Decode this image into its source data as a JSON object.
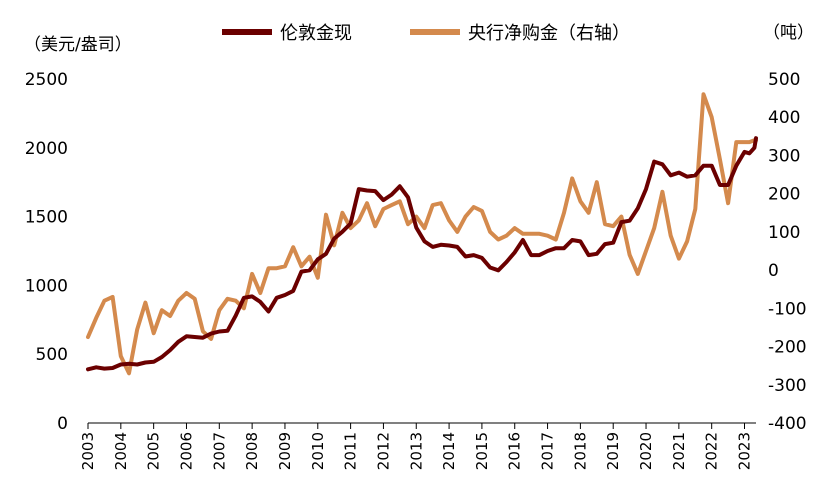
{
  "chart_data": {
    "type": "line",
    "left_axis_unit": "（美元/盎司）",
    "right_axis_unit": "（吨）",
    "left_ticks": [
      "0",
      "500",
      "1000",
      "1500",
      "2000",
      "2500"
    ],
    "right_ticks": [
      "-400",
      "-300",
      "-200",
      "-100",
      "0",
      "100",
      "200",
      "300",
      "400",
      "500"
    ],
    "x_ticks": [
      "2003",
      "2004",
      "2005",
      "2006",
      "2007",
      "2008",
      "2009",
      "2010",
      "2011",
      "2012",
      "2013",
      "2014",
      "2015",
      "2016",
      "2017",
      "2018",
      "2019",
      "2020",
      "2021",
      "2022",
      "2023"
    ],
    "ylim_left": [
      0,
      2500
    ],
    "ylim_right": [
      -400,
      500
    ],
    "xlim": [
      2003,
      2023.35
    ],
    "legend_position": "top",
    "series": [
      {
        "name": "伦敦金现",
        "axis": "left",
        "color": "#6b0000",
        "points": [
          [
            2003.0,
            390
          ],
          [
            2003.25,
            405
          ],
          [
            2003.5,
            395
          ],
          [
            2003.75,
            400
          ],
          [
            2004.0,
            425
          ],
          [
            2004.25,
            430
          ],
          [
            2004.5,
            425
          ],
          [
            2004.75,
            440
          ],
          [
            2005.0,
            445
          ],
          [
            2005.25,
            480
          ],
          [
            2005.5,
            530
          ],
          [
            2005.75,
            590
          ],
          [
            2006.0,
            630
          ],
          [
            2006.25,
            625
          ],
          [
            2006.5,
            620
          ],
          [
            2006.75,
            650
          ],
          [
            2007.0,
            665
          ],
          [
            2007.25,
            670
          ],
          [
            2007.5,
            780
          ],
          [
            2007.75,
            910
          ],
          [
            2008.0,
            920
          ],
          [
            2008.25,
            880
          ],
          [
            2008.5,
            810
          ],
          [
            2008.75,
            910
          ],
          [
            2009.0,
            930
          ],
          [
            2009.25,
            960
          ],
          [
            2009.5,
            1100
          ],
          [
            2009.75,
            1110
          ],
          [
            2010.0,
            1190
          ],
          [
            2010.25,
            1230
          ],
          [
            2010.5,
            1340
          ],
          [
            2010.75,
            1390
          ],
          [
            2011.0,
            1450
          ],
          [
            2011.25,
            1700
          ],
          [
            2011.5,
            1690
          ],
          [
            2011.75,
            1685
          ],
          [
            2012.0,
            1620
          ],
          [
            2012.25,
            1660
          ],
          [
            2012.5,
            1720
          ],
          [
            2012.75,
            1640
          ],
          [
            2013.0,
            1420
          ],
          [
            2013.25,
            1320
          ],
          [
            2013.5,
            1280
          ],
          [
            2013.75,
            1295
          ],
          [
            2014.0,
            1290
          ],
          [
            2014.25,
            1280
          ],
          [
            2014.5,
            1210
          ],
          [
            2014.75,
            1220
          ],
          [
            2015.0,
            1200
          ],
          [
            2015.25,
            1130
          ],
          [
            2015.5,
            1110
          ],
          [
            2015.75,
            1170
          ],
          [
            2016.0,
            1240
          ],
          [
            2016.25,
            1330
          ],
          [
            2016.5,
            1220
          ],
          [
            2016.75,
            1220
          ],
          [
            2017.0,
            1250
          ],
          [
            2017.25,
            1270
          ],
          [
            2017.5,
            1270
          ],
          [
            2017.75,
            1330
          ],
          [
            2018.0,
            1320
          ],
          [
            2018.25,
            1220
          ],
          [
            2018.5,
            1230
          ],
          [
            2018.75,
            1300
          ],
          [
            2019.0,
            1310
          ],
          [
            2019.25,
            1460
          ],
          [
            2019.5,
            1470
          ],
          [
            2019.75,
            1560
          ],
          [
            2020.0,
            1700
          ],
          [
            2020.25,
            1900
          ],
          [
            2020.5,
            1880
          ],
          [
            2020.75,
            1800
          ],
          [
            2021.0,
            1820
          ],
          [
            2021.25,
            1790
          ],
          [
            2021.5,
            1800
          ],
          [
            2021.75,
            1870
          ],
          [
            2022.0,
            1870
          ],
          [
            2022.25,
            1730
          ],
          [
            2022.5,
            1730
          ],
          [
            2022.75,
            1870
          ],
          [
            2023.0,
            1970
          ],
          [
            2023.15,
            1960
          ],
          [
            2023.3,
            2000
          ],
          [
            2023.35,
            2070
          ]
        ]
      },
      {
        "name": "央行净购金（右轴）",
        "axis": "right",
        "color": "#d48a4d",
        "points": [
          [
            2003.0,
            -175
          ],
          [
            2003.25,
            -125
          ],
          [
            2003.5,
            -80
          ],
          [
            2003.75,
            -70
          ],
          [
            2004.0,
            -225
          ],
          [
            2004.25,
            -270
          ],
          [
            2004.5,
            -155
          ],
          [
            2004.75,
            -85
          ],
          [
            2005.0,
            -165
          ],
          [
            2005.25,
            -105
          ],
          [
            2005.5,
            -120
          ],
          [
            2005.75,
            -80
          ],
          [
            2006.0,
            -60
          ],
          [
            2006.25,
            -75
          ],
          [
            2006.5,
            -160
          ],
          [
            2006.75,
            -180
          ],
          [
            2007.0,
            -105
          ],
          [
            2007.25,
            -75
          ],
          [
            2007.5,
            -80
          ],
          [
            2007.75,
            -100
          ],
          [
            2008.0,
            -10
          ],
          [
            2008.25,
            -60
          ],
          [
            2008.5,
            5
          ],
          [
            2008.75,
            5
          ],
          [
            2009.0,
            10
          ],
          [
            2009.25,
            60
          ],
          [
            2009.5,
            10
          ],
          [
            2009.75,
            35
          ],
          [
            2010.0,
            -20
          ],
          [
            2010.25,
            145
          ],
          [
            2010.5,
            65
          ],
          [
            2010.75,
            150
          ],
          [
            2011.0,
            110
          ],
          [
            2011.25,
            130
          ],
          [
            2011.5,
            175
          ],
          [
            2011.75,
            115
          ],
          [
            2012.0,
            160
          ],
          [
            2012.25,
            170
          ],
          [
            2012.5,
            180
          ],
          [
            2012.75,
            120
          ],
          [
            2013.0,
            140
          ],
          [
            2013.25,
            110
          ],
          [
            2013.5,
            170
          ],
          [
            2013.75,
            175
          ],
          [
            2014.0,
            130
          ],
          [
            2014.25,
            100
          ],
          [
            2014.5,
            140
          ],
          [
            2014.75,
            165
          ],
          [
            2015.0,
            155
          ],
          [
            2015.25,
            100
          ],
          [
            2015.5,
            80
          ],
          [
            2015.75,
            90
          ],
          [
            2016.0,
            110
          ],
          [
            2016.25,
            95
          ],
          [
            2016.5,
            95
          ],
          [
            2016.75,
            95
          ],
          [
            2017.0,
            90
          ],
          [
            2017.25,
            80
          ],
          [
            2017.5,
            150
          ],
          [
            2017.75,
            240
          ],
          [
            2018.0,
            180
          ],
          [
            2018.25,
            150
          ],
          [
            2018.5,
            230
          ],
          [
            2018.75,
            120
          ],
          [
            2019.0,
            115
          ],
          [
            2019.25,
            140
          ],
          [
            2019.5,
            40
          ],
          [
            2019.75,
            -10
          ],
          [
            2020.0,
            50
          ],
          [
            2020.25,
            110
          ],
          [
            2020.5,
            205
          ],
          [
            2020.75,
            90
          ],
          [
            2021.0,
            30
          ],
          [
            2021.25,
            75
          ],
          [
            2021.5,
            160
          ],
          [
            2021.75,
            460
          ],
          [
            2022.0,
            400
          ],
          [
            2022.25,
            290
          ],
          [
            2022.5,
            175
          ],
          [
            2022.75,
            335
          ],
          [
            2023.0,
            335
          ],
          [
            2023.15,
            335
          ],
          [
            2023.3,
            340
          ],
          [
            2023.35,
            340
          ]
        ]
      }
    ]
  }
}
